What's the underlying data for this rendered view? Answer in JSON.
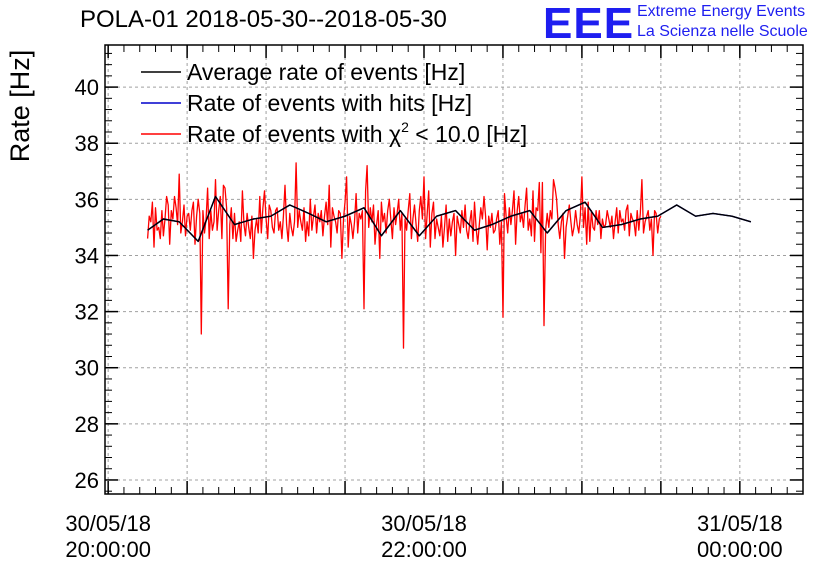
{
  "header": {
    "title": "POLA-01 2018-05-30--2018-05-30",
    "logo_text": "EEE",
    "logo_line1": "Extreme Energy Events",
    "logo_line2": "La Scienza nelle Scuole",
    "logo_color": "#1e1ef0"
  },
  "chart_data": {
    "type": "line",
    "title": "POLA-01 2018-05-30--2018-05-30",
    "xlabel": "",
    "ylabel": "Rate [Hz]",
    "xlim_hours": [
      19.98,
      24.4
    ],
    "ylim": [
      25.5,
      41.5
    ],
    "yticks": [
      26,
      28,
      30,
      32,
      34,
      36,
      38,
      40
    ],
    "xticks": [
      {
        "hours": 20.0,
        "line1": "30/05/18",
        "line2": "20:00:00"
      },
      {
        "hours": 22.0,
        "line1": "30/05/18",
        "line2": "22:00:00"
      },
      {
        "hours": 24.0,
        "line1": "31/05/18",
        "line2": "00:00:00"
      }
    ],
    "grid": true,
    "legend_position": "top-left",
    "legend": [
      {
        "label": "Average rate of events [Hz]",
        "color": "#000000"
      },
      {
        "label": "Rate of events with hits [Hz]",
        "color": "#0000cc"
      },
      {
        "label_prefix": "Rate of events with ",
        "label_symbol": "χ",
        "label_sup": "2",
        "label_suffix": " < 10.0 [Hz]",
        "color": "#ff0000"
      }
    ],
    "series": [
      {
        "name": "Average rate of events [Hz]",
        "color": "#000000",
        "x_hours": [
          20.25,
          20.35,
          20.45,
          20.57,
          20.68,
          20.8,
          20.92,
          21.03,
          21.15,
          21.27,
          21.38,
          21.5,
          21.62,
          21.73,
          21.85,
          21.97,
          22.08,
          22.2,
          22.32,
          22.43,
          22.55,
          22.67,
          22.78,
          22.9,
          23.02,
          23.13,
          23.25,
          23.37,
          23.48,
          23.6,
          23.72,
          23.83,
          23.95,
          24.07
        ],
        "values": [
          34.9,
          35.3,
          35.2,
          34.5,
          36.1,
          35.1,
          35.3,
          35.4,
          35.8,
          35.5,
          35.2,
          35.4,
          35.7,
          34.7,
          35.6,
          34.7,
          35.4,
          35.6,
          34.9,
          35.1,
          35.4,
          35.6,
          34.8,
          35.6,
          35.9,
          35.0,
          35.1,
          35.3,
          35.4,
          35.8,
          35.4,
          35.5,
          35.4,
          35.2
        ]
      },
      {
        "name": "Rate of events with hits [Hz]",
        "color": "#0000cc",
        "x_hours": [
          20.25,
          20.35,
          20.45,
          20.57,
          20.68,
          20.8,
          20.92,
          21.03,
          21.15,
          21.27,
          21.38,
          21.5,
          21.62,
          21.73,
          21.85,
          21.97,
          22.08,
          22.2,
          22.32,
          22.43,
          22.55,
          22.67,
          22.78,
          22.9,
          23.02,
          23.13,
          23.25,
          23.37,
          23.48,
          23.6,
          23.72,
          23.83,
          23.95,
          24.07
        ],
        "values": [
          34.9,
          35.3,
          35.2,
          34.5,
          36.1,
          35.1,
          35.3,
          35.4,
          35.8,
          35.5,
          35.2,
          35.4,
          35.7,
          34.7,
          35.6,
          34.7,
          35.4,
          35.6,
          34.9,
          35.1,
          35.4,
          35.6,
          34.8,
          35.6,
          35.9,
          35.0,
          35.1,
          35.3,
          35.4,
          35.8,
          35.4,
          35.5,
          35.4,
          35.2
        ]
      },
      {
        "name": "Rate of events with χ2 < 10.0 [Hz]",
        "color": "#ff0000",
        "x_start_hours": 20.25,
        "x_step_hours": 0.01,
        "values": [
          34.6,
          35.4,
          35.2,
          35.9,
          34.3,
          35.7,
          34.9,
          35.0,
          34.6,
          35.6,
          34.7,
          35.3,
          36.1,
          35.8,
          34.4,
          35.6,
          35.3,
          36.1,
          35.7,
          35.1,
          36.9,
          34.8,
          35.2,
          35.8,
          34.7,
          35.4,
          35.5,
          34.9,
          35.6,
          35.9,
          34.4,
          35.4,
          36.0,
          35.5,
          31.2,
          35.6,
          34.8,
          35.3,
          36.4,
          34.6,
          35.6,
          34.9,
          35.2,
          36.7,
          34.9,
          35.6,
          36.1,
          34.6,
          36.5,
          36.4,
          35.7,
          32.1,
          35.1,
          35.7,
          34.6,
          35.5,
          34.5,
          34.9,
          35.2,
          34.5,
          36.3,
          35.1,
          34.7,
          35.5,
          35.0,
          34.6,
          35.4,
          33.9,
          34.9,
          35.3,
          34.8,
          36.1,
          34.8,
          35.7,
          36.3,
          35.3,
          34.6,
          35.8,
          35.6,
          35.0,
          34.8,
          35.6,
          35.7,
          34.9,
          35.2,
          34.6,
          35.4,
          36.5,
          35.1,
          34.5,
          35.5,
          35.0,
          34.7,
          35.2,
          37.3,
          35.0,
          35.6,
          35.2,
          34.9,
          35.7,
          34.5,
          35.2,
          34.7,
          36.0,
          34.9,
          35.4,
          35.8,
          34.8,
          35.5,
          35.2,
          35.6,
          34.7,
          35.4,
          35.9,
          35.1,
          36.5,
          34.3,
          35.7,
          35.4,
          35.2,
          34.8,
          35.6,
          35.5,
          33.9,
          35.3,
          35.9,
          36.8,
          34.3,
          35.4,
          35.1,
          34.6,
          35.2,
          36.2,
          34.8,
          35.5,
          35.3,
          35.6,
          32.1,
          36.3,
          37.2,
          35.0,
          35.7,
          35.2,
          35.8,
          34.4,
          35.1,
          35.6,
          33.9,
          35.9,
          35.2,
          35.5,
          34.8,
          35.6,
          36.0,
          35.3,
          34.6,
          35.7,
          35.1,
          35.5,
          36.0,
          34.9,
          35.5,
          30.7,
          35.3,
          34.9,
          35.6,
          36.2,
          34.6,
          35.3,
          35.8,
          35.1,
          34.5,
          35.6,
          36.1,
          35.3,
          36.8,
          34.6,
          35.5,
          36.3,
          34.3,
          35.5,
          35.9,
          34.6,
          35.3,
          35.0,
          34.7,
          35.4,
          34.3,
          35.0,
          35.8,
          34.5,
          35.3,
          34.7,
          35.2,
          35.5,
          34.0,
          35.4,
          35.1,
          34.8,
          35.6,
          35.0,
          35.8,
          34.9,
          34.6,
          35.2,
          35.6,
          34.5,
          35.9,
          35.0,
          34.4,
          35.1,
          35.7,
          35.3,
          36.1,
          35.4,
          34.2,
          35.4,
          35.0,
          35.5,
          34.8,
          34.9,
          35.3,
          35.6,
          34.4,
          35.2,
          31.8,
          36.2,
          35.4,
          34.8,
          35.7,
          35.1,
          35.6,
          36.3,
          34.4,
          35.6,
          36.1,
          35.2,
          35.5,
          35.0,
          35.8,
          36.4,
          34.9,
          35.3,
          34.7,
          36.3,
          34.5,
          35.7,
          35.6,
          36.6,
          34.1,
          36.6,
          31.5,
          34.9,
          35.5,
          35.0,
          35.6,
          35.3,
          36.7,
          36.4,
          36.0,
          35.1,
          34.6,
          35.2,
          35.5,
          33.9,
          35.0,
          35.4,
          35.8,
          35.2,
          34.7,
          35.0,
          35.6,
          35.1,
          34.8,
          35.4,
          36.8,
          35.0,
          35.7,
          34.4,
          35.9,
          34.5,
          35.6,
          35.0,
          34.9,
          35.6,
          35.1,
          35.6,
          34.6,
          35.3,
          35.0,
          35.1,
          35.6,
          35.3,
          35.0,
          35.4,
          34.6,
          35.2,
          35.7,
          34.8,
          35.6,
          35.2,
          35.3,
          34.9,
          35.6,
          35.8,
          34.7,
          35.5,
          35.3,
          35.2,
          34.7,
          35.6,
          34.9,
          35.5,
          36.7,
          34.8,
          35.2,
          35.4,
          35.6,
          34.9,
          35.3,
          34.0,
          35.6,
          35.5,
          34.8,
          35.3,
          35.4
        ]
      }
    ]
  }
}
